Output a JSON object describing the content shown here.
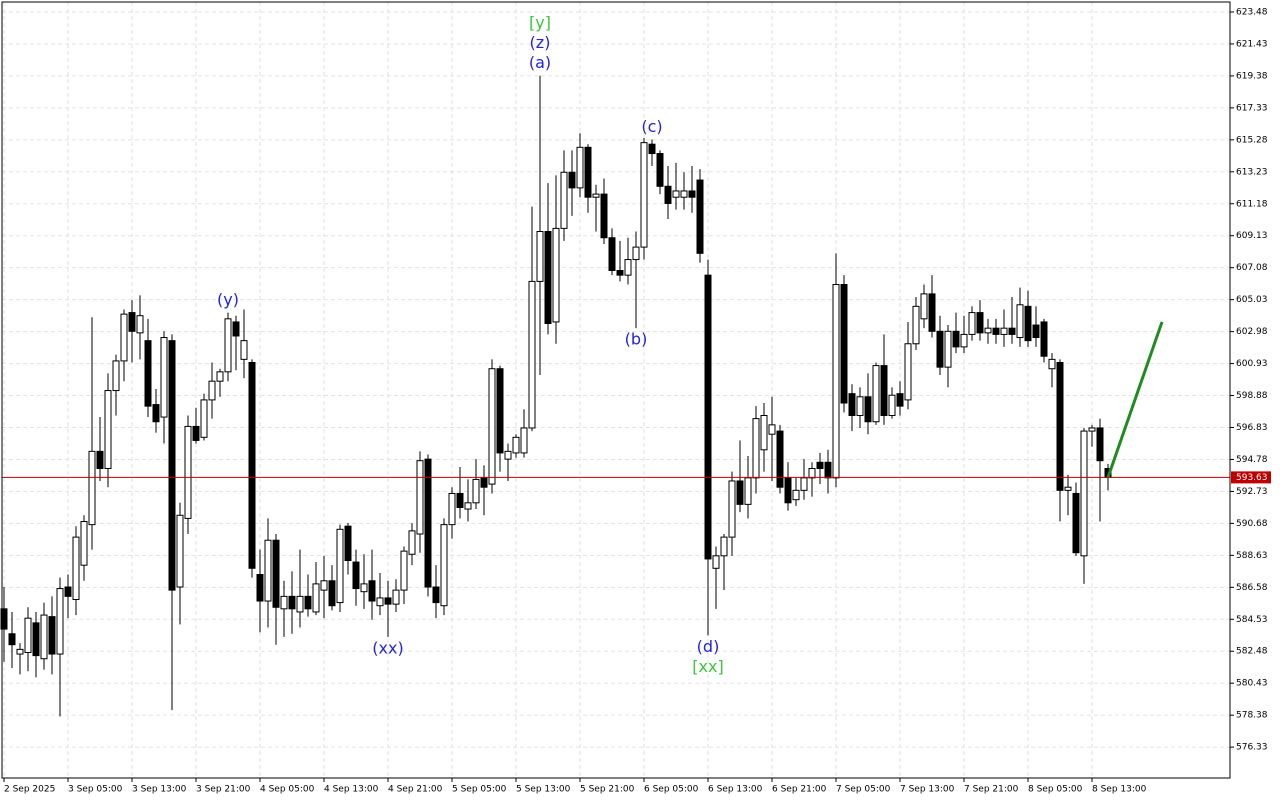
{
  "chart_data": {
    "type": "candlestick",
    "categories": [
      "2 Sep 2025",
      null,
      null,
      null,
      null,
      null,
      null,
      null,
      "3 Sep 05:00",
      null,
      null,
      null,
      null,
      null,
      null,
      null,
      "3 Sep 13:00",
      null,
      null,
      null,
      null,
      null,
      null,
      null,
      "3 Sep 21:00",
      null,
      null,
      null,
      null,
      null,
      null,
      null,
      "4 Sep 05:00",
      null,
      null,
      null,
      null,
      null,
      null,
      null,
      "4 Sep 13:00",
      null,
      null,
      null,
      null,
      null,
      null,
      null,
      "4 Sep 21:00",
      null,
      null,
      null,
      null,
      null,
      null,
      null,
      "5 Sep 05:00",
      null,
      null,
      null,
      null,
      null,
      null,
      null,
      "5 Sep 13:00",
      null,
      null,
      null,
      null,
      null,
      null,
      null,
      "5 Sep 21:00",
      null,
      null,
      null,
      null,
      null,
      null,
      null,
      "6 Sep 05:00",
      null,
      null,
      null,
      null,
      null,
      null,
      null,
      "6 Sep 13:00",
      null,
      null,
      null,
      null,
      null,
      null,
      null,
      "6 Sep 21:00",
      null,
      null,
      null,
      null,
      null,
      null,
      null,
      "7 Sep 05:00",
      null,
      null,
      null,
      null,
      null,
      null,
      null,
      "7 Sep 13:00",
      null,
      null,
      null,
      null,
      null,
      null,
      null,
      "7 Sep 21:00",
      null,
      null,
      null,
      null,
      null,
      null,
      null,
      "8 Sep 05:00",
      null,
      null,
      null,
      null,
      null,
      null,
      null,
      "8 Sep 13:00",
      null,
      null
    ],
    "open": [
      585.2,
      583.6,
      582.3,
      582.4,
      584.3,
      582.0,
      584.7,
      582.3,
      586.6,
      585.8,
      588.0,
      590.6,
      595.3,
      594.2,
      599.2,
      601.1,
      604.2,
      602.9,
      602.4,
      598.3,
      597.5,
      602.4,
      586.6,
      591.0,
      596.9,
      596.2,
      598.6,
      599.8,
      600.4,
      603.6,
      601.2,
      601.0,
      587.4,
      585.7,
      589.6,
      585.2,
      586.0,
      585.0,
      586.0,
      585.0,
      586.4,
      587.0,
      585.6,
      590.5,
      588.2,
      586.3,
      587.0,
      585.4,
      585.9,
      585.5,
      586.4,
      588.7,
      590.0,
      594.8,
      586.6,
      585.4,
      590.6,
      592.6,
      591.6,
      592.0,
      593.6,
      593.2,
      600.6,
      594.8,
      595.2,
      595.2,
      596.8,
      606.2,
      609.4,
      603.6,
      609.6,
      613.2,
      612.2,
      614.8,
      611.6,
      611.8,
      609.0,
      606.9,
      606.6,
      607.6,
      608.4,
      615.0,
      614.4,
      612.3,
      611.6,
      611.6,
      612.0,
      612.7,
      606.6,
      587.8,
      588.6,
      589.8,
      593.4,
      591.9,
      593.6,
      595.4,
      596.4,
      596.6,
      593.6,
      592.2,
      592.8,
      593.6,
      594.6,
      594.6,
      593.6,
      606.0,
      599.0,
      597.6,
      598.8,
      597.2,
      600.8,
      597.6,
      599.0,
      598.6,
      602.2,
      603.8,
      605.4,
      603.0,
      600.7,
      603.0,
      602.0,
      602.8,
      604.2,
      602.9,
      603.2,
      602.8,
      603.2,
      602.6,
      604.6,
      603.4,
      603.6,
      600.6,
      601.0,
      592.8,
      592.6,
      588.6,
      596.6,
      596.8,
      594.2
    ],
    "high": [
      586.6,
      585.0,
      583.0,
      585.3,
      585.0,
      585.6,
      586.0,
      587.2,
      587.4,
      590.5,
      591.2,
      603.9,
      597.5,
      600.3,
      601.5,
      604.4,
      605.0,
      605.3,
      603.8,
      599.3,
      603.0,
      602.8,
      592.0,
      597.6,
      598.1,
      599.0,
      601.0,
      600.6,
      604.2,
      604.0,
      604.4,
      601.2,
      589.0,
      591.0,
      590.0,
      587.0,
      587.6,
      589.0,
      587.4,
      588.2,
      588.6,
      588.0,
      590.6,
      590.7,
      589.0,
      588.7,
      589.0,
      587.5,
      587.0,
      587.1,
      589.2,
      590.7,
      595.3,
      595.1,
      588.0,
      591.0,
      593.0,
      594.3,
      593.5,
      594.8,
      594.4,
      601.2,
      600.8,
      595.8,
      596.4,
      598.0,
      611.0,
      619.4,
      612.5,
      613.0,
      614.6,
      614.6,
      615.7,
      615.0,
      612.4,
      612.8,
      609.6,
      608.8,
      609.0,
      609.4,
      615.4,
      615.3,
      614.6,
      613.6,
      613.8,
      613.2,
      613.6,
      613.4,
      607.6,
      589.2,
      590.0,
      594.0,
      596.0,
      595.0,
      598.2,
      598.4,
      598.8,
      597.0,
      594.6,
      593.6,
      594.8,
      594.6,
      595.2,
      595.4,
      608.0,
      606.6,
      599.6,
      599.4,
      600.3,
      601.0,
      602.8,
      599.4,
      599.8,
      603.6,
      605.2,
      606.0,
      606.6,
      604.0,
      603.4,
      604.2,
      604.0,
      604.6,
      605.0,
      603.8,
      603.8,
      604.4,
      605.2,
      605.8,
      605.6,
      604.6,
      603.8,
      601.6,
      601.2,
      593.8,
      593.3,
      596.8,
      597.0,
      597.4,
      594.5
    ],
    "low": [
      581.8,
      581.4,
      581.0,
      581.2,
      580.8,
      581.3,
      581.0,
      578.3,
      584.6,
      584.8,
      587.0,
      589.0,
      593.4,
      593.0,
      597.6,
      599.8,
      601.0,
      601.2,
      597.5,
      596.5,
      595.8,
      578.7,
      584.2,
      590.0,
      595.8,
      596.0,
      597.4,
      598.8,
      599.8,
      600.5,
      600.0,
      587.2,
      583.7,
      584.0,
      582.9,
      583.4,
      583.6,
      584.0,
      584.7,
      584.8,
      584.6,
      585.1,
      585.0,
      587.4,
      585.4,
      585.2,
      584.5,
      584.8,
      583.4,
      585.0,
      585.5,
      588.0,
      588.8,
      586.0,
      584.6,
      584.8,
      589.7,
      591.0,
      590.8,
      591.6,
      591.2,
      592.6,
      594.0,
      593.4,
      594.9,
      594.9,
      596.6,
      600.2,
      602.8,
      602.2,
      608.8,
      610.4,
      611.6,
      610.6,
      609.4,
      608.6,
      606.6,
      606.2,
      606.0,
      603.2,
      607.6,
      613.6,
      611.8,
      610.2,
      610.8,
      610.8,
      610.6,
      607.4,
      583.5,
      585.2,
      586.4,
      588.6,
      591.4,
      591.0,
      592.6,
      594.0,
      593.4,
      592.6,
      591.5,
      591.8,
      592.2,
      592.4,
      593.2,
      592.6,
      593.0,
      597.8,
      596.6,
      596.8,
      596.4,
      597.0,
      597.0,
      597.4,
      597.6,
      598.0,
      601.8,
      603.2,
      602.6,
      600.2,
      599.4,
      601.6,
      601.6,
      602.4,
      602.4,
      602.2,
      602.2,
      602.0,
      602.2,
      602.0,
      602.0,
      602.0,
      601.0,
      599.4,
      590.8,
      591.2,
      588.6,
      586.8,
      595.6,
      590.8,
      592.8
    ],
    "close": [
      583.9,
      582.9,
      582.6,
      584.6,
      582.2,
      584.8,
      582.3,
      586.5,
      586.0,
      589.8,
      590.8,
      595.3,
      594.2,
      599.2,
      601.1,
      604.1,
      603.0,
      604.0,
      598.2,
      597.2,
      602.6,
      586.4,
      591.2,
      596.9,
      596.0,
      598.6,
      599.8,
      600.4,
      603.8,
      602.7,
      602.4,
      587.8,
      585.7,
      589.6,
      585.3,
      586.0,
      585.2,
      586.0,
      585.2,
      586.8,
      587.0,
      585.4,
      590.3,
      588.3,
      586.5,
      586.8,
      585.7,
      585.9,
      585.5,
      586.4,
      588.9,
      590.2,
      594.7,
      586.6,
      585.6,
      590.6,
      592.6,
      591.7,
      592.0,
      593.5,
      593.0,
      600.6,
      595.2,
      595.3,
      596.2,
      596.8,
      606.2,
      609.4,
      603.5,
      609.6,
      613.2,
      612.2,
      614.8,
      611.6,
      611.8,
      609.0,
      606.9,
      606.6,
      607.6,
      608.4,
      615.1,
      614.4,
      612.3,
      611.2,
      612.0,
      612.0,
      611.6,
      608.0,
      588.4,
      588.6,
      589.8,
      593.4,
      591.9,
      593.6,
      597.4,
      597.6,
      597.0,
      593.0,
      592.0,
      592.8,
      593.6,
      594.2,
      594.2,
      593.6,
      606.0,
      598.4,
      597.6,
      598.8,
      597.2,
      600.8,
      597.6,
      598.9,
      598.2,
      602.2,
      604.6,
      605.4,
      603.0,
      600.7,
      603.0,
      602.0,
      602.8,
      604.2,
      602.9,
      603.2,
      602.8,
      603.2,
      602.8,
      604.7,
      602.4,
      602.6,
      601.4,
      601.2,
      592.8,
      593.0,
      588.8,
      596.6,
      596.8,
      594.7,
      593.63
    ],
    "ylim": [
      574.35,
      624.12
    ],
    "yticks": [
      623.48,
      621.43,
      619.38,
      617.33,
      615.28,
      613.23,
      611.18,
      609.13,
      607.08,
      605.03,
      602.98,
      600.93,
      598.88,
      596.83,
      594.78,
      592.73,
      590.68,
      588.63,
      586.58,
      584.53,
      582.48,
      580.43,
      578.38,
      576.33
    ],
    "grid": true,
    "current_price": 593.63,
    "current_price_color": "#c00000",
    "forecast": {
      "x": [
        138,
        144.75
      ],
      "y": [
        593.63,
        603.6
      ],
      "color": "#1e8c1e"
    },
    "annotations": [
      {
        "text": "(a)",
        "candle": 67,
        "side": "above",
        "color": "#2323d8"
      },
      {
        "text": "(z)",
        "candle": 67,
        "side": "above",
        "color": "#2323d8"
      },
      {
        "text": "[y]",
        "candle": 67,
        "side": "above",
        "color": "#3ec43e"
      },
      {
        "text": "(y)",
        "candle": 28,
        "side": "above",
        "color": "#2323d8"
      },
      {
        "text": "(c)",
        "candle": 81,
        "side": "above",
        "color": "#2323d8"
      },
      {
        "text": "(b)",
        "candle": 79,
        "side": "below",
        "color": "#2323d8"
      },
      {
        "text": "(xx)",
        "candle": 48,
        "side": "below",
        "color": "#2323d8"
      },
      {
        "text": "(d)",
        "candle": 88,
        "side": "below",
        "color": "#2323d8"
      },
      {
        "text": "[xx]",
        "candle": 88,
        "side": "below",
        "color": "#3ec43e"
      }
    ]
  }
}
